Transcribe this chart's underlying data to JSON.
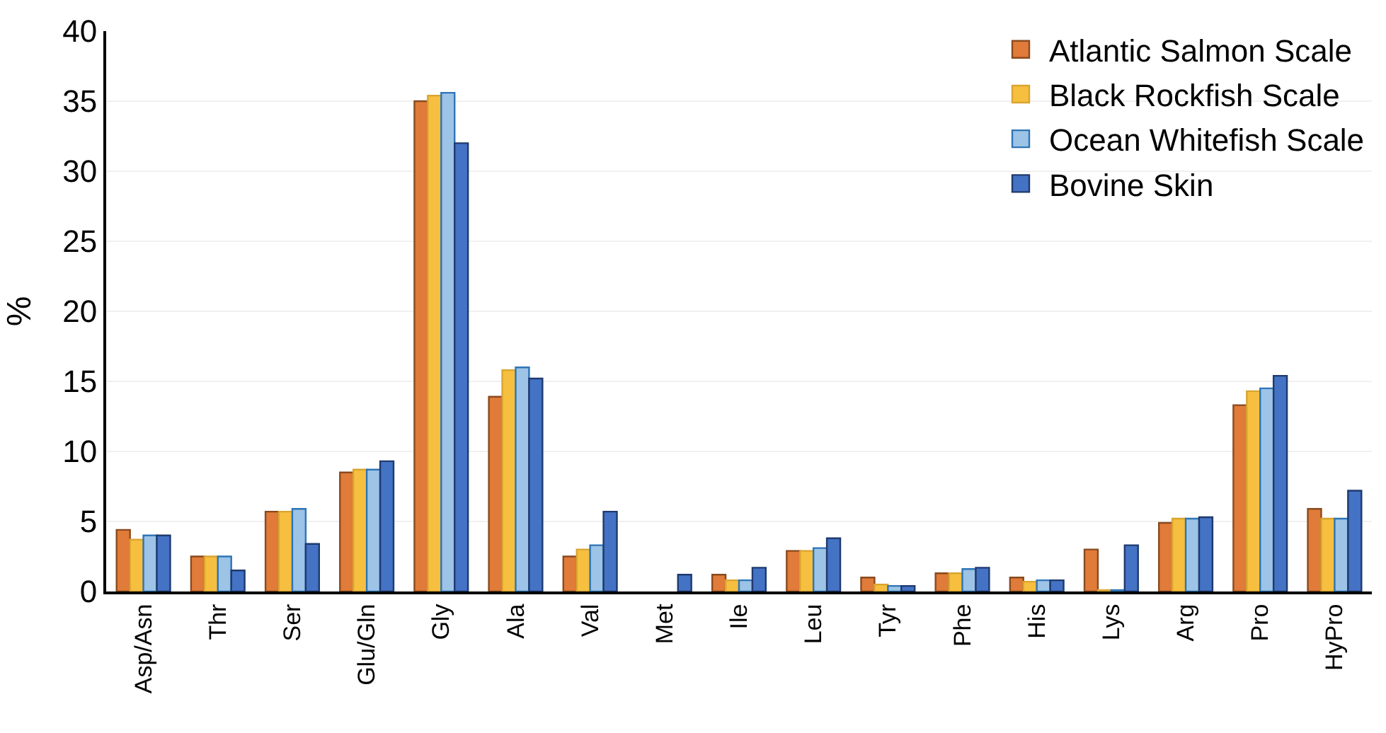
{
  "chart_data": {
    "type": "bar",
    "ylabel": "%",
    "categories": [
      "Asp/Asn",
      "Thr",
      "Ser",
      "Glu/Gln",
      "Gly",
      "Ala",
      "Val",
      "Met",
      "Ile",
      "Leu",
      "Tyr",
      "Phe",
      "His",
      "Lys",
      "Arg",
      "Pro",
      "HyPro"
    ],
    "series": [
      {
        "name": "Atlantic Salmon Scale",
        "color": "#e07b39",
        "values": [
          4.4,
          2.5,
          5.7,
          8.5,
          35.0,
          13.9,
          2.5,
          0,
          1.2,
          2.9,
          1.0,
          1.3,
          1.0,
          3.0,
          4.9,
          13.3,
          5.9
        ]
      },
      {
        "name": "Black Rockfish Scale",
        "color": "#f6bf3f",
        "values": [
          3.7,
          2.5,
          5.7,
          8.7,
          35.4,
          15.8,
          3.0,
          0,
          0.8,
          2.9,
          0.5,
          1.3,
          0.7,
          0.1,
          5.2,
          14.3,
          5.2
        ]
      },
      {
        "name": "Ocean Whitefish Scale",
        "color": "#9dc3e6",
        "values": [
          4.0,
          2.5,
          5.9,
          8.7,
          35.6,
          16.0,
          3.3,
          0,
          0.8,
          3.1,
          0.4,
          1.6,
          0.8,
          0.1,
          5.2,
          14.5,
          5.2
        ]
      },
      {
        "name": "Bovine Skin",
        "color": "#4472c4",
        "values": [
          4.0,
          1.5,
          3.4,
          9.3,
          32.0,
          15.2,
          5.7,
          1.2,
          1.7,
          3.8,
          0.4,
          1.7,
          0.8,
          3.3,
          5.3,
          15.4,
          7.2
        ]
      }
    ],
    "ylim": [
      0,
      40
    ],
    "yticks": [
      0,
      5,
      10,
      15,
      20,
      25,
      30,
      35,
      40
    ],
    "grid": "y",
    "legend": "top right"
  }
}
